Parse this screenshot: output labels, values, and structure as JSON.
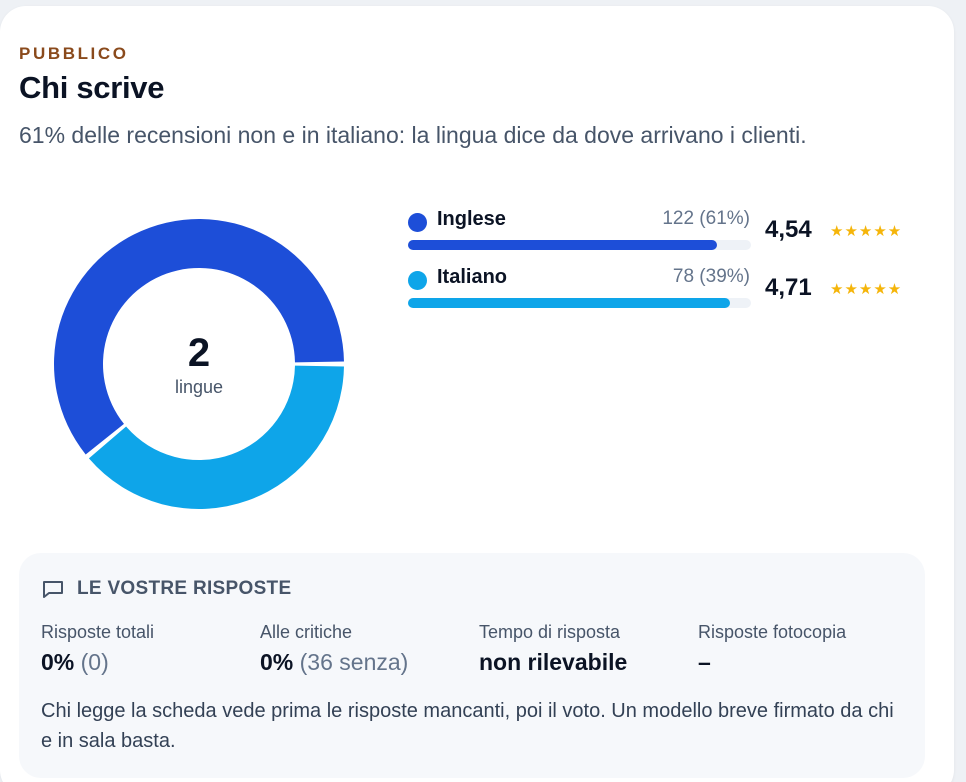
{
  "section": {
    "eyebrow": "PUBBLICO",
    "title": "Chi scrive",
    "subtitle": "61% delle recensioni non e in italiano: la lingua dice da dove arrivano i clienti."
  },
  "donut": {
    "count": "2",
    "label": "lingue"
  },
  "languages": [
    {
      "name": "Inglese",
      "count": "122 (61%)",
      "share": 0.61,
      "bar_fill_percent": 90,
      "rating": "4,54",
      "stars": "★★★★★",
      "color": "#1d4ed8"
    },
    {
      "name": "Italiano",
      "count": "78 (39%)",
      "share": 0.39,
      "bar_fill_percent": 94,
      "rating": "4,71",
      "stars": "★★★★★",
      "color": "#0ea5e9"
    }
  ],
  "replies": {
    "title": "LE VOSTRE RISPOSTE",
    "stats": [
      {
        "label": "Risposte totali",
        "value": "0%",
        "extra": "(0)"
      },
      {
        "label": "Alle critiche",
        "value": "0%",
        "extra": "(36 senza)"
      },
      {
        "label": "Tempo di risposta",
        "value": "non rilevabile",
        "extra": ""
      },
      {
        "label": "Risposte fotocopia",
        "value": "–",
        "extra": ""
      }
    ],
    "note": "Chi legge la scheda vede prima le risposte mancanti, poi il voto. Un modello breve firmato da chi e in sala basta."
  }
}
